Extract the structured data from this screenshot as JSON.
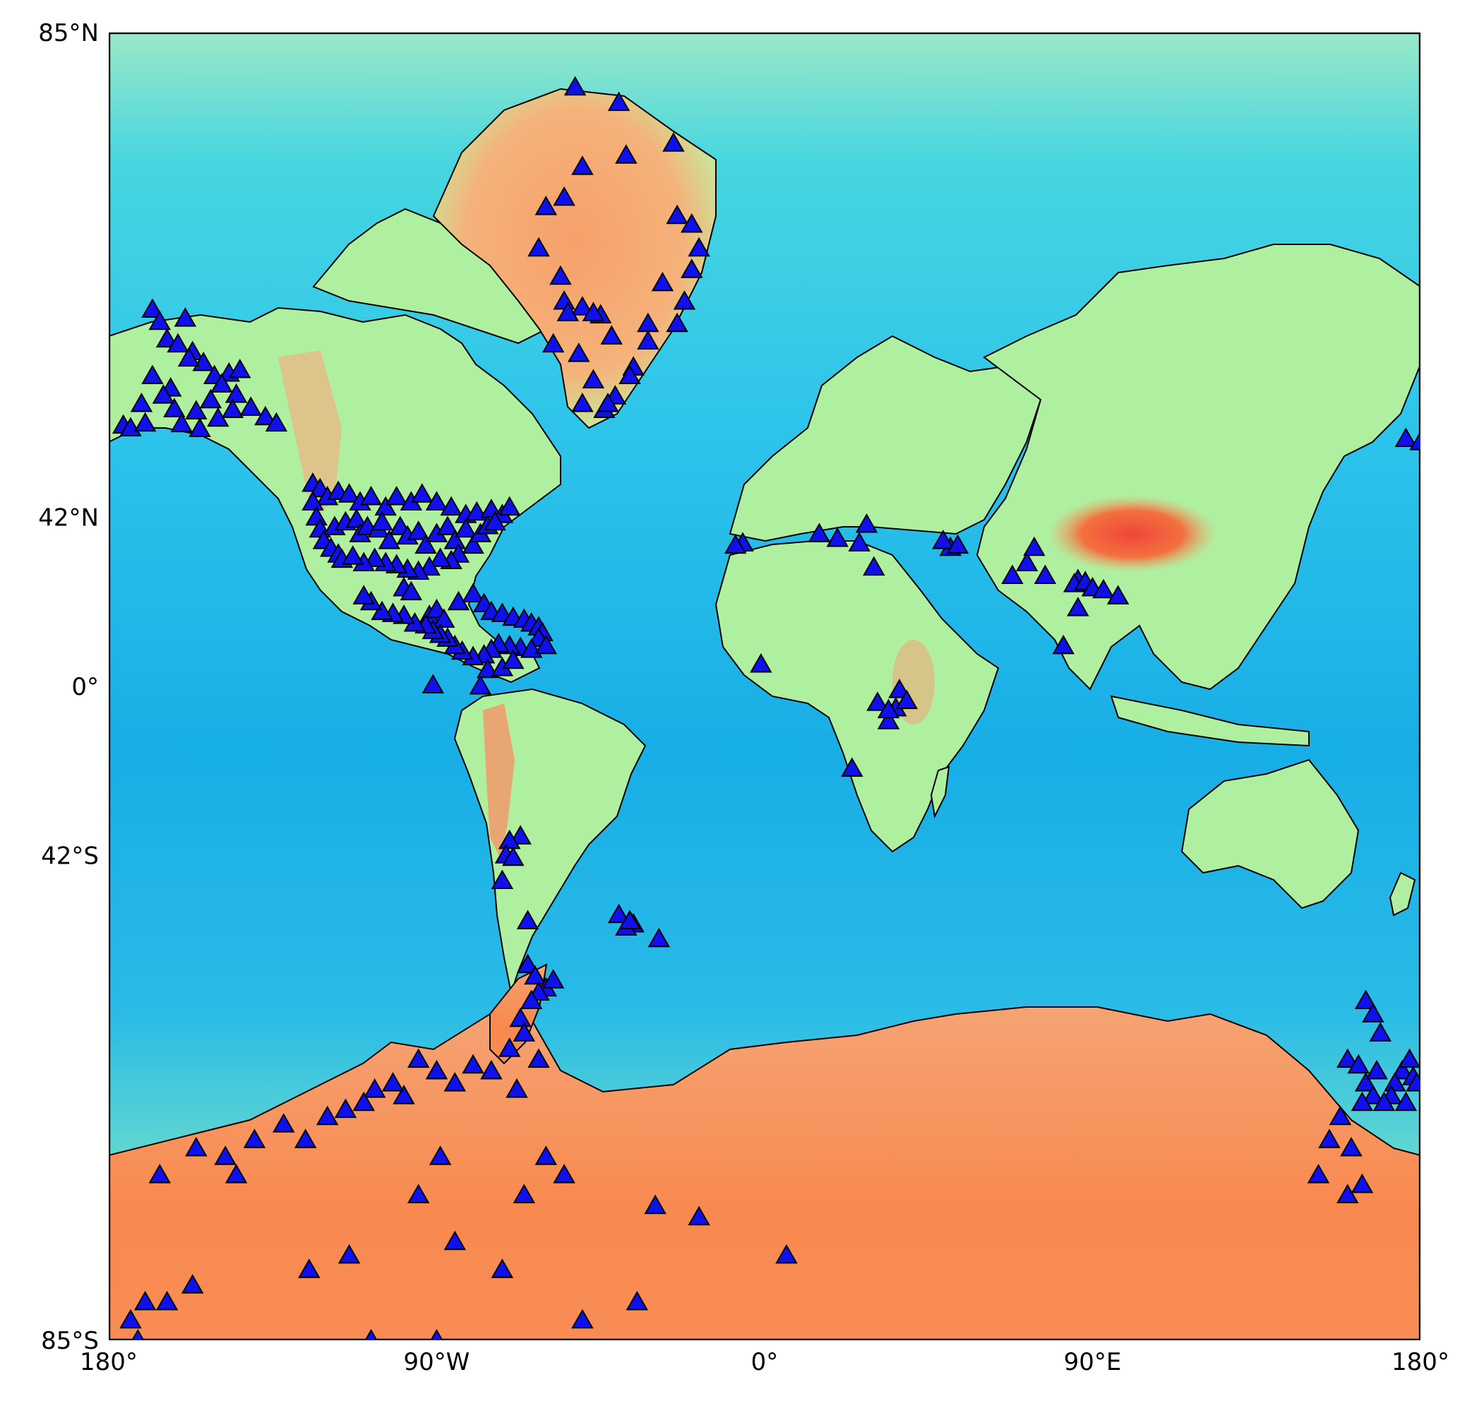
{
  "map": {
    "projection": "mercator",
    "lat_range": [
      -85,
      85
    ],
    "lon_range": [
      -180,
      180
    ],
    "y_ticks": [
      {
        "lat": 85,
        "label": "85°N"
      },
      {
        "lat": 42,
        "label": "42°N"
      },
      {
        "lat": 0,
        "label": "0°"
      },
      {
        "lat": -42,
        "label": "42°S"
      },
      {
        "lat": -85,
        "label": "85°S"
      }
    ],
    "x_ticks": [
      {
        "lon": -180,
        "label": "180°"
      },
      {
        "lon": -90,
        "label": "90°W"
      },
      {
        "lon": 0,
        "label": "0°"
      },
      {
        "lon": 90,
        "label": "90°E"
      },
      {
        "lon": 180,
        "label": "180°"
      }
    ],
    "colors": {
      "ocean_deep": "#1a8ee8",
      "ocean": "#2ec7e6",
      "shelf": "#7ef2c8",
      "land_low": "#aef0a0",
      "highland": "#f5a76a",
      "peak": "#f0563a",
      "marker_fill": "#1010ee",
      "marker_stroke": "#000000"
    },
    "marker_icon": "triangle-marker-icon",
    "stations": [
      [
        -168,
        71.3
      ],
      [
        -166,
        70.2
      ],
      [
        -159,
        70.5
      ],
      [
        -164,
        68.5
      ],
      [
        -161,
        68
      ],
      [
        -157,
        67.2
      ],
      [
        -154,
        66
      ],
      [
        -158,
        66.5
      ],
      [
        -151,
        64.5
      ],
      [
        -147,
        64.8
      ],
      [
        -144,
        65.2
      ],
      [
        -149,
        63.5
      ],
      [
        -145,
        62.2
      ],
      [
        -152,
        61.5
      ],
      [
        -156,
        60
      ],
      [
        -162,
        60.3
      ],
      [
        -171,
        61
      ],
      [
        -176,
        58
      ],
      [
        -174,
        57.6
      ],
      [
        -170,
        58.3
      ],
      [
        -160,
        58.2
      ],
      [
        -155,
        57.5
      ],
      [
        -150,
        59
      ],
      [
        -146,
        60.2
      ],
      [
        -141,
        60.5
      ],
      [
        -137,
        59.2
      ],
      [
        -134,
        58.3
      ],
      [
        -163,
        63
      ],
      [
        -168,
        64.5
      ],
      [
        -165,
        62.1
      ],
      [
        -124,
        48.5
      ],
      [
        -122,
        47.5
      ],
      [
        -120,
        46
      ],
      [
        -117,
        47
      ],
      [
        -114,
        46.5
      ],
      [
        -111,
        45
      ],
      [
        -108,
        46
      ],
      [
        -104,
        44
      ],
      [
        -101,
        46
      ],
      [
        -97,
        45
      ],
      [
        -94,
        46.5
      ],
      [
        -90,
        45
      ],
      [
        -86,
        44
      ],
      [
        -82,
        42.5
      ],
      [
        -79,
        43
      ],
      [
        -75,
        43.5
      ],
      [
        -72,
        42.5
      ],
      [
        -70,
        44
      ],
      [
        -124,
        45
      ],
      [
        -123,
        42
      ],
      [
        -122,
        39.5
      ],
      [
        -121,
        37
      ],
      [
        -119,
        35.3
      ],
      [
        -117,
        34
      ],
      [
        -116,
        32.8
      ],
      [
        -118,
        40
      ],
      [
        -115,
        41
      ],
      [
        -112,
        41.5
      ],
      [
        -111,
        38.5
      ],
      [
        -109,
        40
      ],
      [
        -106,
        39.5
      ],
      [
        -105,
        41
      ],
      [
        -103,
        37
      ],
      [
        -100,
        40
      ],
      [
        -98,
        38
      ],
      [
        -95,
        39
      ],
      [
        -93,
        36
      ],
      [
        -90,
        38.5
      ],
      [
        -87,
        40
      ],
      [
        -85,
        37
      ],
      [
        -82,
        39.5
      ],
      [
        -80,
        36
      ],
      [
        -78,
        38.5
      ],
      [
        -76,
        40.2
      ],
      [
        -74,
        41
      ],
      [
        -84,
        34
      ],
      [
        -86,
        32.5
      ],
      [
        -89,
        33
      ],
      [
        -92,
        31
      ],
      [
        -95,
        30
      ],
      [
        -98,
        30.5
      ],
      [
        -101,
        31.5
      ],
      [
        -104,
        32
      ],
      [
        -107,
        33
      ],
      [
        -110,
        32
      ],
      [
        -113,
        33.5
      ],
      [
        -99,
        26
      ],
      [
        -97,
        25
      ],
      [
        -92,
        19
      ],
      [
        -90,
        20.5
      ],
      [
        -88,
        18
      ],
      [
        -84,
        22.5
      ],
      [
        -80,
        24.5
      ],
      [
        -77,
        22
      ],
      [
        -75,
        20
      ],
      [
        -72,
        19.5
      ],
      [
        -69,
        18.5
      ],
      [
        -66,
        18
      ],
      [
        -64,
        17
      ],
      [
        -62,
        16
      ],
      [
        -61,
        14.5
      ],
      [
        -62,
        13
      ],
      [
        -67,
        10.5
      ],
      [
        -70,
        11
      ],
      [
        -73,
        11.5
      ],
      [
        -75,
        10
      ],
      [
        -77,
        8.5
      ],
      [
        -80,
        8
      ],
      [
        -83,
        9.5
      ],
      [
        -85,
        11
      ],
      [
        -87,
        13
      ],
      [
        -89,
        14
      ],
      [
        -91,
        15
      ],
      [
        -93,
        16.5
      ],
      [
        -96,
        17
      ],
      [
        -99,
        19
      ],
      [
        -102,
        19.5
      ],
      [
        -105,
        20
      ],
      [
        -108,
        22.5
      ],
      [
        -110,
        24
      ],
      [
        -91,
        0.3
      ],
      [
        -78,
        0
      ],
      [
        -76,
        4.5
      ],
      [
        -72,
        5
      ],
      [
        -69,
        7
      ],
      [
        -64,
        10
      ],
      [
        -60,
        11
      ],
      [
        -67,
        -38
      ],
      [
        -70,
        -39
      ],
      [
        -71,
        -42
      ],
      [
        -72,
        -47
      ],
      [
        -69,
        -42.5
      ],
      [
        -65,
        -54
      ],
      [
        -36,
        -54.5
      ],
      [
        -38,
        -55
      ],
      [
        -40,
        -53
      ],
      [
        -29,
        -56.8
      ],
      [
        -37,
        -54
      ],
      [
        -65,
        -60.5
      ],
      [
        -63,
        -62
      ],
      [
        -60,
        -63.5
      ],
      [
        -58,
        -62.5
      ],
      [
        -62,
        -64
      ],
      [
        -64,
        -65
      ],
      [
        -67,
        -67
      ],
      [
        -66,
        -68.5
      ],
      [
        -62,
        -71
      ],
      [
        -68,
        -73.5
      ],
      [
        -70,
        -70
      ],
      [
        -75,
        -72
      ],
      [
        -80,
        -71.5
      ],
      [
        -85,
        -73
      ],
      [
        -90,
        -72
      ],
      [
        -95,
        -71
      ],
      [
        -99,
        -74
      ],
      [
        -102,
        -73
      ],
      [
        -107,
        -73.5
      ],
      [
        -110,
        -74.5
      ],
      [
        -115,
        -75
      ],
      [
        -120,
        -75.5
      ],
      [
        -126,
        -77
      ],
      [
        -132,
        -76
      ],
      [
        -140,
        -77
      ],
      [
        -148,
        -78
      ],
      [
        -156,
        -77.5
      ],
      [
        -166,
        -79
      ],
      [
        -145,
        -79
      ],
      [
        -95,
        -80
      ],
      [
        -85,
        -82
      ],
      [
        -72,
        -83
      ],
      [
        -30,
        -80.5
      ],
      [
        -18,
        -81
      ],
      [
        -35,
        -84
      ],
      [
        6,
        -82.5
      ],
      [
        -50,
        -84.5
      ],
      [
        -90,
        -85
      ],
      [
        -108,
        -85
      ],
      [
        -114,
        -82.5
      ],
      [
        -125,
        -83
      ],
      [
        -157,
        -83.5
      ],
      [
        -164,
        -84
      ],
      [
        -172,
        -85
      ],
      [
        -170,
        -84
      ],
      [
        -174,
        -84.5
      ],
      [
        -89,
        -78
      ],
      [
        -66,
        -80
      ],
      [
        -60,
        -78
      ],
      [
        -55,
        -79
      ],
      [
        -52,
        83.5
      ],
      [
        -40,
        83
      ],
      [
        -38,
        81
      ],
      [
        -25,
        81.5
      ],
      [
        -50,
        80.5
      ],
      [
        -60,
        78.5
      ],
      [
        -55,
        79
      ],
      [
        -62,
        76
      ],
      [
        -56,
        74
      ],
      [
        -50,
        71.5
      ],
      [
        -55,
        72
      ],
      [
        -45,
        70.8
      ],
      [
        -58,
        68
      ],
      [
        -51,
        67
      ],
      [
        -47,
        64
      ],
      [
        -50,
        61
      ],
      [
        -44,
        60.2
      ],
      [
        -41,
        62
      ],
      [
        -36,
        65.5
      ],
      [
        -32,
        68.3
      ],
      [
        -24,
        70
      ],
      [
        -22,
        72
      ],
      [
        -20,
        74.5
      ],
      [
        -18,
        76
      ],
      [
        -24,
        78
      ],
      [
        -20,
        77.5
      ],
      [
        -28,
        73.5
      ],
      [
        -32,
        70
      ],
      [
        -37,
        64.5
      ],
      [
        -43,
        61
      ],
      [
        -47,
        71
      ],
      [
        -42,
        68.8
      ],
      [
        -54,
        71
      ],
      [
        -6,
        36.5
      ],
      [
        -8,
        36
      ],
      [
        15,
        38.5
      ],
      [
        20,
        37.5
      ],
      [
        28,
        40.5
      ],
      [
        26,
        36.5
      ],
      [
        30,
        31
      ],
      [
        51,
        35.5
      ],
      [
        49,
        37
      ],
      [
        53,
        36
      ],
      [
        72,
        32
      ],
      [
        68,
        29
      ],
      [
        77,
        29
      ],
      [
        74,
        35.5
      ],
      [
        86,
        28
      ],
      [
        85,
        27
      ],
      [
        88,
        27.5
      ],
      [
        90,
        26
      ],
      [
        93,
        25.5
      ],
      [
        97,
        24
      ],
      [
        86,
        21
      ],
      [
        82,
        11
      ],
      [
        37,
        -1
      ],
      [
        -1,
        6
      ],
      [
        31,
        -4.5
      ],
      [
        34,
        -9.5
      ],
      [
        36,
        -6
      ],
      [
        39,
        -4
      ],
      [
        34,
        -6.5
      ],
      [
        24,
        -22
      ],
      [
        176,
        56
      ],
      [
        180,
        55.5
      ],
      [
        165,
        -65
      ],
      [
        167,
        -66.5
      ],
      [
        169,
        -68.5
      ],
      [
        160,
        -71
      ],
      [
        163,
        -71.5
      ],
      [
        165,
        -73
      ],
      [
        168,
        -72
      ],
      [
        175,
        -72
      ],
      [
        177,
        -71
      ],
      [
        173,
        -73
      ],
      [
        167,
        -74
      ],
      [
        164,
        -74.5
      ],
      [
        172,
        -74
      ],
      [
        178,
        -72.5
      ],
      [
        179,
        -73
      ],
      [
        155,
        -77
      ],
      [
        158,
        -75.5
      ],
      [
        161,
        -77.5
      ],
      [
        164,
        -79.5
      ],
      [
        152,
        -79
      ],
      [
        160,
        -80
      ],
      [
        170,
        -74.5
      ],
      [
        176,
        -74.5
      ]
    ]
  }
}
